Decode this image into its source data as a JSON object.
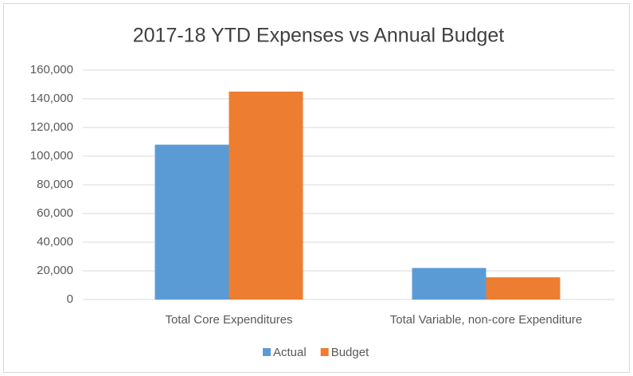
{
  "chart_data": {
    "type": "bar",
    "title": "2017-18 YTD Expenses vs Annual Budget",
    "categories": [
      "Total Core Expenditures",
      "Total Variable, non-core Expenditure"
    ],
    "series": [
      {
        "name": "Actual",
        "color": "#5b9bd5",
        "values": [
          108000,
          22000
        ]
      },
      {
        "name": "Budget",
        "color": "#ed7d31",
        "values": [
          145000,
          15500
        ]
      }
    ],
    "ylim": [
      0,
      160000
    ],
    "yticks": [
      0,
      {
        "value": 20000,
        "label": "20,000"
      },
      {
        "value": 40000,
        "label": "40,000"
      },
      {
        "value": 60000,
        "label": "60,000"
      },
      {
        "value": 80000,
        "label": "80,000"
      },
      {
        "value": 100000,
        "label": "100,000"
      },
      {
        "value": 120000,
        "label": "120,000"
      },
      {
        "value": 140000,
        "label": "140,000"
      },
      {
        "value": 160000,
        "label": "160,000"
      }
    ],
    "grid": true,
    "legend": "bottom"
  }
}
